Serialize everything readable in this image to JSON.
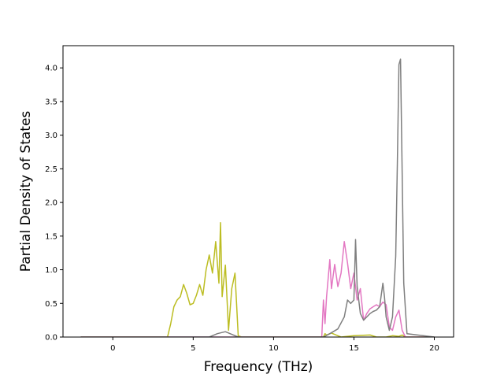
{
  "chart_data": {
    "type": "line",
    "title": "",
    "xlabel": "Frequency (THz)",
    "ylabel": "Partial Density of States",
    "xlim": [
      -3.1,
      21.2
    ],
    "ylim": [
      0,
      4.33
    ],
    "x_ticks": [
      0,
      5,
      10,
      15,
      20
    ],
    "y_ticks": [
      0.0,
      0.5,
      1.0,
      1.5,
      2.0,
      2.5,
      3.0,
      3.5,
      4.0
    ],
    "x_tick_labels": [
      "0",
      "5",
      "10",
      "15",
      "20"
    ],
    "y_tick_labels": [
      "0.0",
      "0.5",
      "1.0",
      "1.5",
      "2.0",
      "2.5",
      "3.0",
      "3.5",
      "4.0"
    ],
    "grid": false,
    "legend": "none",
    "series": [
      {
        "color": "#bcbd22",
        "x": [
          -2.0,
          3.4,
          3.6,
          3.8,
          4.0,
          4.2,
          4.4,
          4.6,
          4.8,
          5.0,
          5.2,
          5.4,
          5.6,
          5.8,
          6.0,
          6.2,
          6.4,
          6.6,
          6.7,
          6.8,
          7.0,
          7.2,
          7.4,
          7.6,
          7.8,
          8.0,
          13.1,
          13.2,
          13.3,
          13.6,
          14.0,
          14.2,
          15.0,
          16.0,
          16.4,
          17.0,
          17.4,
          17.8,
          18.0,
          18.2,
          20.0
        ],
        "y": [
          0.0,
          0.0,
          0.2,
          0.45,
          0.55,
          0.6,
          0.78,
          0.65,
          0.48,
          0.5,
          0.62,
          0.78,
          0.62,
          1.0,
          1.22,
          0.95,
          1.42,
          0.8,
          1.7,
          0.6,
          1.07,
          0.1,
          0.72,
          0.95,
          0.02,
          0.0,
          0.0,
          0.05,
          0.03,
          0.06,
          0.02,
          0.0,
          0.02,
          0.03,
          0.0,
          0.0,
          0.02,
          0.01,
          0.03,
          0.0,
          0.0
        ]
      },
      {
        "color": "#e377c2",
        "x": [
          -2.0,
          13.0,
          13.1,
          13.2,
          13.3,
          13.5,
          13.6,
          13.8,
          14.0,
          14.2,
          14.4,
          14.6,
          14.8,
          15.0,
          15.2,
          15.4,
          15.6,
          15.8,
          16.0,
          16.2,
          16.4,
          16.6,
          16.8,
          17.0,
          17.2,
          17.4,
          17.6,
          17.8,
          18.0,
          18.2,
          20.0
        ],
        "y": [
          0.0,
          0.0,
          0.55,
          0.2,
          0.6,
          1.15,
          0.72,
          1.08,
          0.75,
          0.95,
          1.42,
          1.1,
          0.72,
          0.95,
          0.55,
          0.72,
          0.25,
          0.35,
          0.42,
          0.45,
          0.48,
          0.45,
          0.52,
          0.48,
          0.15,
          0.1,
          0.3,
          0.4,
          0.1,
          0.0,
          0.0
        ]
      },
      {
        "color": "#7f7f7f",
        "x": [
          -2.0,
          6.0,
          6.5,
          7.0,
          7.4,
          7.8,
          13.1,
          13.5,
          14.0,
          14.4,
          14.6,
          14.8,
          15.0,
          15.1,
          15.2,
          15.4,
          15.6,
          15.8,
          16.0,
          16.2,
          16.4,
          16.6,
          16.8,
          16.9,
          17.0,
          17.2,
          17.4,
          17.6,
          17.7,
          17.8,
          17.9,
          18.1,
          18.3,
          20.0
        ],
        "y": [
          0.0,
          0.0,
          0.05,
          0.08,
          0.04,
          0.0,
          0.0,
          0.05,
          0.12,
          0.3,
          0.55,
          0.5,
          0.55,
          1.45,
          0.75,
          0.35,
          0.25,
          0.3,
          0.35,
          0.38,
          0.4,
          0.45,
          0.8,
          0.6,
          0.3,
          0.1,
          0.3,
          1.2,
          2.6,
          4.05,
          4.13,
          0.8,
          0.05,
          0.0
        ]
      }
    ]
  }
}
